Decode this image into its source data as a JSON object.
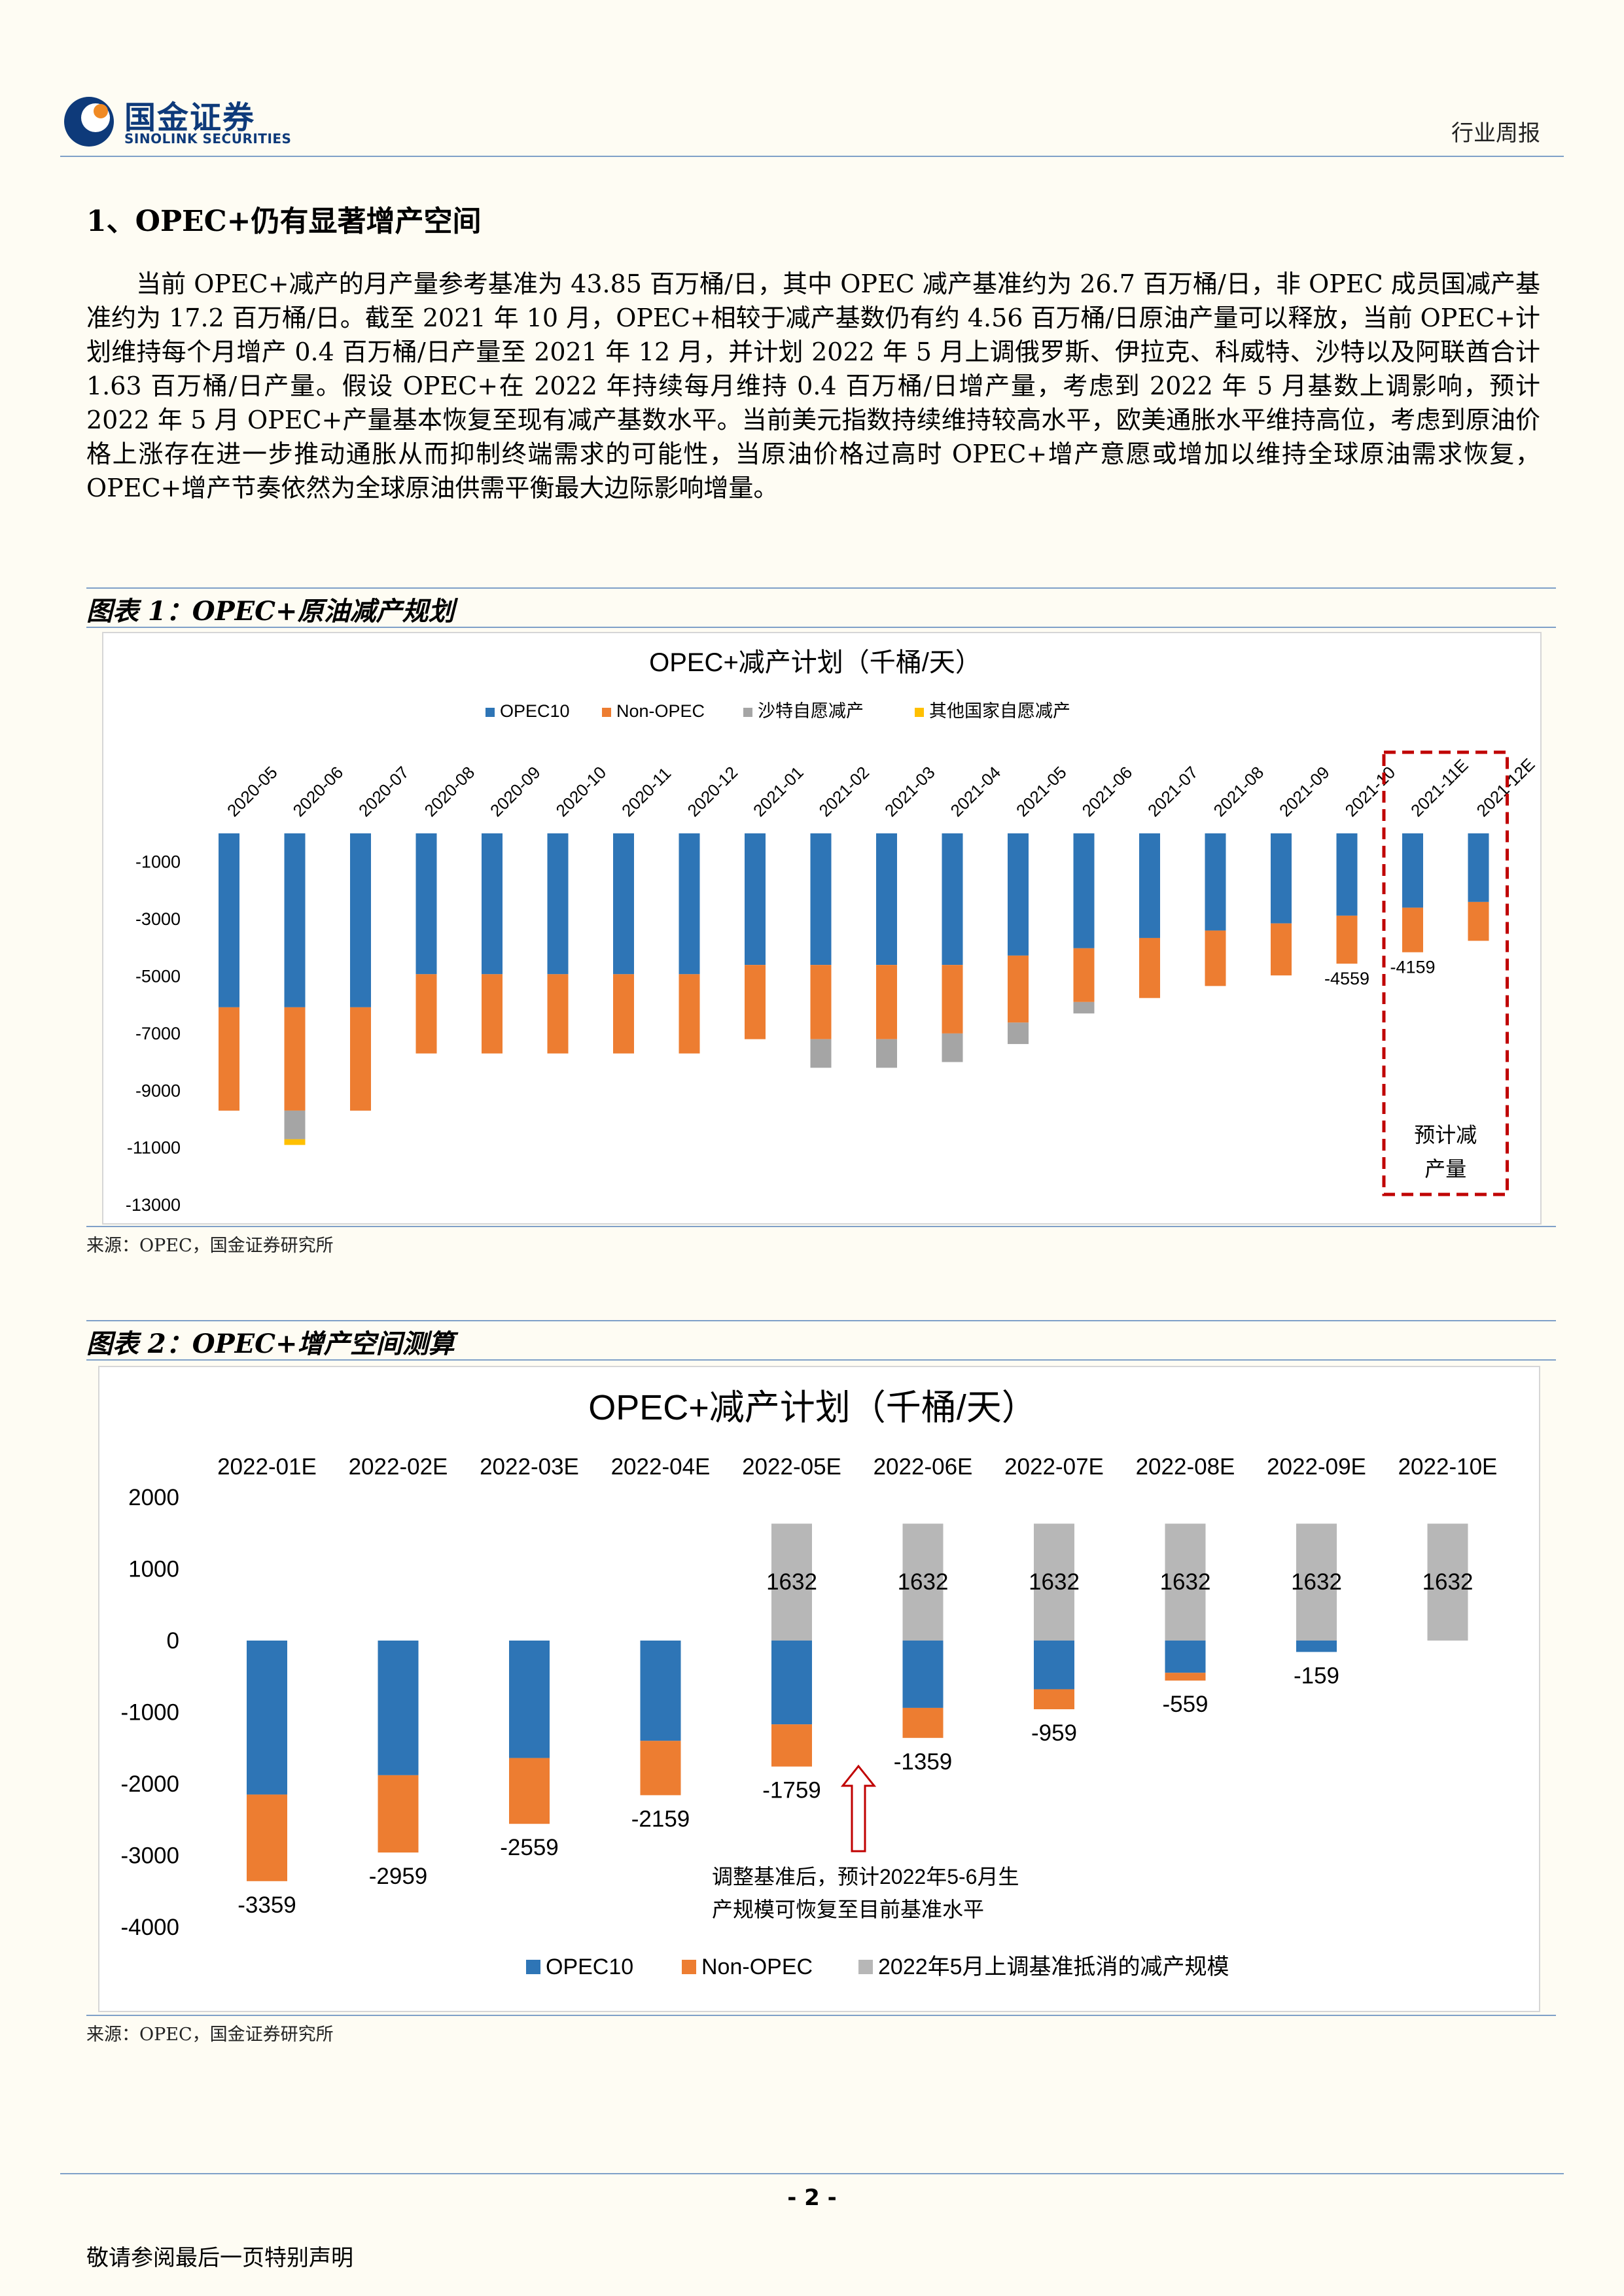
{
  "header": {
    "brand_cn": "国金证券",
    "brand_en": "SINOLINK SECURITIES",
    "report_type": "行业周报"
  },
  "section": {
    "title": "1、OPEC+仍有显著增产空间",
    "paragraph": "当前 OPEC+减产的月产量参考基准为 43.85 百万桶/日，其中 OPEC 减产基准约为 26.7 百万桶/日，非 OPEC 成员国减产基准约为 17.2 百万桶/日。截至 2021 年 10 月，OPEC+相较于减产基数仍有约 4.56 百万桶/日原油产量可以释放，当前 OPEC+计划维持每个月增产 0.4 百万桶/日产量至 2021 年 12 月，并计划 2022 年 5 月上调俄罗斯、伊拉克、科威特、沙特以及阿联酋合计 1.63 百万桶/日产量。假设 OPEC+在 2022 年持续每月维持 0.4 百万桶/日增产量，考虑到 2022 年 5 月基数上调影响，预计 2022 年 5 月 OPEC+产量基本恢复至现有减产基数水平。当前美元指数持续维持较高水平，欧美通胀水平维持高位，考虑到原油价格上涨存在进一步推动通胀从而抑制终端需求的可能性，当原油价格过高时 OPEC+增产意愿或增加以维持全球原油需求恢复，OPEC+增产节奏依然为全球原油供需平衡最大边际影响增量。"
  },
  "figure1": {
    "caption": "图表 1：OPEC+原油减产规划",
    "source": "来源：OPEC，国金证券研究所",
    "chart_data": {
      "type": "bar",
      "stacked": true,
      "title": "OPEC+减产计划（千桶/天）",
      "categories": [
        "2020-05",
        "2020-06",
        "2020-07",
        "2020-08",
        "2020-09",
        "2020-10",
        "2020-11",
        "2020-12",
        "2021-01",
        "2021-02",
        "2021-03",
        "2021-04",
        "2021-05",
        "2021-06",
        "2021-07",
        "2021-08",
        "2021-09",
        "2021-10",
        "2021-11E",
        "2021-12E"
      ],
      "series": [
        {
          "name": "OPEC10",
          "color": "#2e75b6",
          "values": [
            -6084,
            -6084,
            -6084,
            -4927,
            -4927,
            -4927,
            -4927,
            -4927,
            -4603,
            -4603,
            -4603,
            -4603,
            -4276,
            -4020,
            -3660,
            -3400,
            -3150,
            -2880,
            -2600,
            -2400
          ]
        },
        {
          "name": "Non-OPEC",
          "color": "#ed7d31",
          "values": [
            -3616,
            -3616,
            -3616,
            -2773,
            -2773,
            -2773,
            -2773,
            -2773,
            -2597,
            -2597,
            -2597,
            -2397,
            -2344,
            -1880,
            -2100,
            -1940,
            -1820,
            -1679,
            -1559,
            -1359
          ]
        },
        {
          "name": "沙特自愿减产",
          "color": "#a5a5a5",
          "values": [
            0,
            -1000,
            0,
            0,
            0,
            0,
            0,
            0,
            0,
            -1000,
            -1000,
            -1000,
            -750,
            -400,
            0,
            0,
            0,
            0,
            0,
            0
          ]
        },
        {
          "name": "其他国家自愿减产",
          "color": "#ffc000",
          "values": [
            0,
            -200,
            0,
            0,
            0,
            0,
            0,
            0,
            0,
            0,
            0,
            0,
            0,
            0,
            0,
            0,
            0,
            0,
            0,
            0
          ]
        }
      ],
      "data_labels": [
        {
          "category": "2021-10",
          "value": "-4559"
        },
        {
          "category": "2021-11E",
          "value": "-4159"
        }
      ],
      "y_ticks": [
        "-1000",
        "-3000",
        "-5000",
        "-7000",
        "-9000",
        "-11000",
        "-13000"
      ],
      "ylim": [
        -13000,
        0
      ],
      "legend_position": "top",
      "highlight_box": {
        "categories": [
          "2021-11E",
          "2021-12E"
        ],
        "label_line1": "预计减",
        "label_line2": "产量"
      }
    }
  },
  "figure2": {
    "caption": "图表 2：OPEC+增产空间测算",
    "source": "来源：OPEC，国金证券研究所",
    "chart_data": {
      "type": "bar",
      "stacked": true,
      "title": "OPEC+减产计划（千桶/天）",
      "categories": [
        "2022-01E",
        "2022-02E",
        "2022-03E",
        "2022-04E",
        "2022-05E",
        "2022-06E",
        "2022-07E",
        "2022-08E",
        "2022-09E",
        "2022-10E"
      ],
      "series": [
        {
          "name": "OPEC10",
          "color": "#2e75b6",
          "values": [
            -2150,
            -1880,
            -1640,
            -1400,
            -1170,
            -940,
            -680,
            -450,
            -159,
            0
          ]
        },
        {
          "name": "Non-OPEC",
          "color": "#ed7d31",
          "values": [
            -1209,
            -1079,
            -919,
            -759,
            -589,
            -419,
            -279,
            -109,
            0,
            0
          ]
        },
        {
          "name": "2022年5月上调基准抵消的减产规模",
          "color": "#b7b7b7",
          "values": [
            0,
            0,
            0,
            0,
            1632,
            1632,
            1632,
            1632,
            1632,
            1632
          ]
        }
      ],
      "positive_labels": [
        "",
        "",
        "",
        "",
        "1632",
        "1632",
        "1632",
        "1632",
        "1632",
        "1632"
      ],
      "negative_labels": [
        "-3359",
        "-2959",
        "-2559",
        "-2159",
        "-1759",
        "-1359",
        "-959",
        "-559",
        "-159",
        ""
      ],
      "y_ticks": [
        "2000",
        "1000",
        "0",
        "-1000",
        "-2000",
        "-3000",
        "-4000"
      ],
      "ylim": [
        -4000,
        2000
      ],
      "legend_position": "bottom",
      "annotation_line1": "调整基准后，预计2022年5-6月生",
      "annotation_line2": "产规模可恢复至目前基准水平"
    }
  },
  "footer": {
    "page_number": "- 2 -",
    "disclaimer": "敬请参阅最后一页特别声明"
  }
}
